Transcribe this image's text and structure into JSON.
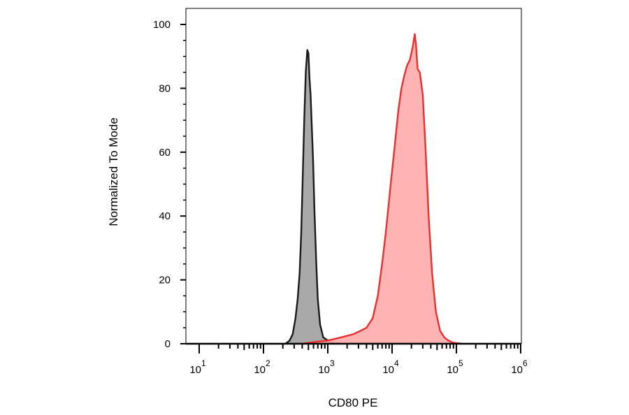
{
  "chart_data": {
    "type": "area",
    "xlabel": "CD80 PE",
    "ylabel": "Normalized To Mode",
    "x_scale": "log",
    "xlim": [
      10,
      1000000
    ],
    "ylim": [
      0,
      105
    ],
    "grid": false,
    "legend": "none",
    "x_ticks": [
      {
        "value": 10,
        "base": "10",
        "exp": "1"
      },
      {
        "value": 100,
        "base": "10",
        "exp": "2"
      },
      {
        "value": 1000,
        "base": "10",
        "exp": "3"
      },
      {
        "value": 10000,
        "base": "10",
        "exp": "4"
      },
      {
        "value": 100000,
        "base": "10",
        "exp": "5"
      },
      {
        "value": 1000000,
        "base": "10",
        "exp": "6"
      }
    ],
    "y_ticks": [
      {
        "value": 0,
        "label": "0"
      },
      {
        "value": 20,
        "label": "20"
      },
      {
        "value": 40,
        "label": "40"
      },
      {
        "value": 60,
        "label": "60"
      },
      {
        "value": 80,
        "label": "80"
      },
      {
        "value": 100,
        "label": "100"
      }
    ],
    "series": [
      {
        "color": "#4d4d4d",
        "fill": "#a9a9a9",
        "stroke": "#1a1a1a",
        "x": [
          220,
          255,
          285,
          315,
          340,
          365,
          385,
          405,
          430,
          455,
          480,
          500,
          520,
          540,
          560,
          590,
          620,
          660,
          700,
          760,
          850,
          1000,
          1200,
          1500
        ],
        "y": [
          0,
          1,
          3,
          8,
          14,
          22,
          34,
          50,
          70,
          85,
          92,
          91,
          83,
          78,
          70,
          58,
          42,
          26,
          14,
          6,
          2,
          1,
          0.3,
          0
        ]
      },
      {
        "color": "#e83030",
        "fill": "#ffabab",
        "stroke": "#e83030",
        "x": [
          400,
          600,
          1000,
          1600,
          2500,
          3200,
          4000,
          5000,
          6000,
          7000,
          8000,
          9500,
          11000,
          12500,
          14000,
          15500,
          17000,
          19000,
          21000,
          22500,
          23500,
          25000,
          27000,
          30000,
          33000,
          37000,
          42000,
          48000,
          56000,
          65000,
          75000,
          90000,
          120000
        ],
        "y": [
          0,
          0.5,
          1,
          2,
          3,
          4,
          5,
          8,
          15,
          25,
          35,
          50,
          62,
          73,
          80,
          84,
          87,
          89,
          93,
          97,
          94,
          86,
          85,
          78,
          62,
          40,
          22,
          10,
          4,
          2,
          1,
          0.3,
          0
        ]
      }
    ]
  }
}
